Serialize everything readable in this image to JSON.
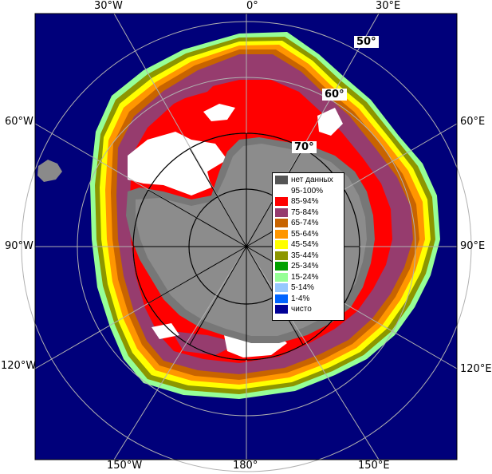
{
  "map": {
    "lon_labels": {
      "top_left": "30°W",
      "top_center": "0°",
      "top_right": "30°E",
      "left_upper": "60°W",
      "left_middle": "90°W",
      "left_lower": "120°W",
      "right_upper": "60°E",
      "right_middle": "90°E",
      "right_lower": "120°E",
      "bottom_left": "150°W",
      "bottom_center": "180°",
      "bottom_right": "150°E"
    },
    "lat_labels": [
      "50°",
      "60°",
      "70°"
    ],
    "colors": {
      "ocean": "#00007a",
      "land": "#8a8a8a",
      "ice_shelf": "#777777",
      "grid": "#b0b0b0",
      "frame": "#000000"
    }
  },
  "legend": {
    "items": [
      {
        "label": "нет данных",
        "color": "#555555"
      },
      {
        "label": "95-100%",
        "color": "#ffffff"
      },
      {
        "label": "85-94%",
        "color": "#ff0000"
      },
      {
        "label": "75-84%",
        "color": "#963c6e"
      },
      {
        "label": "65-74%",
        "color": "#c86400"
      },
      {
        "label": "55-64%",
        "color": "#ff9600"
      },
      {
        "label": "45-54%",
        "color": "#ffff00"
      },
      {
        "label": "35-44%",
        "color": "#8c9600"
      },
      {
        "label": "25-34%",
        "color": "#00a000"
      },
      {
        "label": "15-24%",
        "color": "#96ff96"
      },
      {
        "label": "5-14%",
        "color": "#96c8ff"
      },
      {
        "label": "1-4%",
        "color": "#0064ff"
      },
      {
        "label": "чисто",
        "color": "#000096"
      }
    ]
  }
}
